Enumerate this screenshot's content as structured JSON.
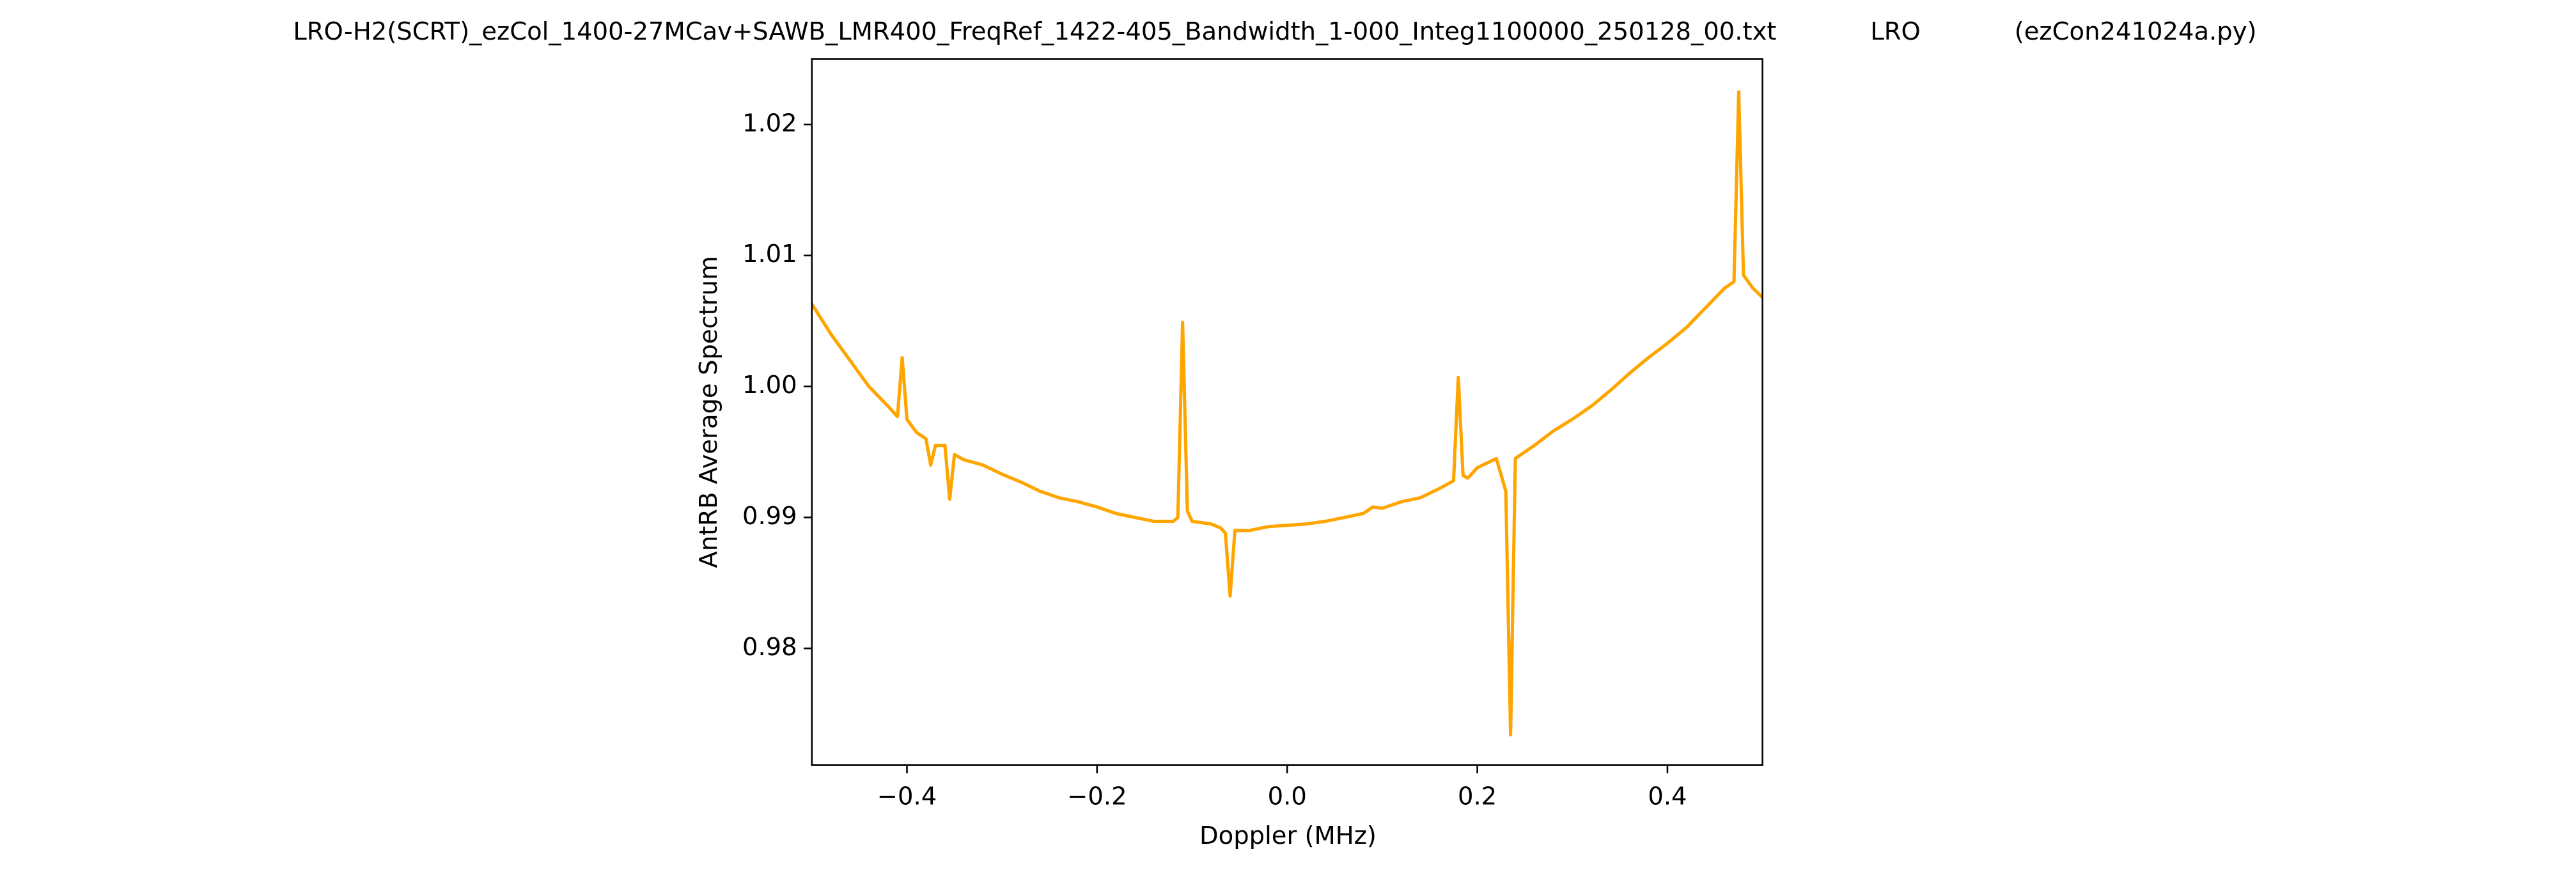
{
  "chart_data": {
    "type": "line",
    "title": "LRO-H2(SCRT)_ezCol_1400-27MCav+SAWB_LMR400_FreqRef_1422-405_Bandwidth_1-000_Integ1100000_250128_00.txt            LRO            (ezCon241024a.py)",
    "x_label": "Doppler (MHz)",
    "y_label": "AntRB Average Spectrum",
    "x": [
      -0.5,
      -0.48,
      -0.46,
      -0.44,
      -0.42,
      -0.41,
      -0.405,
      -0.4,
      -0.39,
      -0.38,
      -0.375,
      -0.37,
      -0.36,
      -0.355,
      -0.35,
      -0.34,
      -0.32,
      -0.3,
      -0.28,
      -0.26,
      -0.24,
      -0.22,
      -0.2,
      -0.18,
      -0.16,
      -0.14,
      -0.12,
      -0.115,
      -0.11,
      -0.105,
      -0.1,
      -0.08,
      -0.07,
      -0.065,
      -0.06,
      -0.055,
      -0.04,
      -0.02,
      0,
      0.02,
      0.04,
      0.06,
      0.08,
      0.09,
      0.1,
      0.12,
      0.14,
      0.16,
      0.175,
      0.18,
      0.185,
      0.19,
      0.2,
      0.22,
      0.23,
      0.235,
      0.24,
      0.26,
      0.28,
      0.3,
      0.32,
      0.34,
      0.36,
      0.38,
      0.4,
      0.42,
      0.44,
      0.46,
      0.47,
      0.475,
      0.48,
      0.49,
      0.5
    ],
    "series": [
      {
        "color": "#ffa500",
        "values": [
          1.0063,
          1.004,
          1.002,
          1.0,
          0.9985,
          0.9977,
          1.0022,
          0.9975,
          0.9965,
          0.996,
          0.994,
          0.9955,
          0.9955,
          0.9914,
          0.9948,
          0.9944,
          0.994,
          0.9933,
          0.9927,
          0.992,
          0.9915,
          0.9912,
          0.9908,
          0.9903,
          0.99,
          0.9897,
          0.9897,
          0.99,
          1.0049,
          0.9905,
          0.9897,
          0.9895,
          0.9892,
          0.9888,
          0.984,
          0.989,
          0.989,
          0.9893,
          0.9894,
          0.9895,
          0.9897,
          0.99,
          0.9903,
          0.9908,
          0.9907,
          0.9912,
          0.9915,
          0.9922,
          0.9928,
          1.0007,
          0.9932,
          0.993,
          0.9938,
          0.9945,
          0.992,
          0.9734,
          0.9945,
          0.9955,
          0.9966,
          0.9975,
          0.9985,
          0.9997,
          1.001,
          1.0022,
          1.0033,
          1.0045,
          1.006,
          1.0075,
          1.008,
          1.0225,
          1.0085,
          1.0075,
          1.0068
        ]
      }
    ],
    "xlim": [
      -0.5,
      0.5
    ],
    "ylim": [
      0.9711,
      1.025
    ],
    "xticks": [
      {
        "value": -0.4,
        "label": "−0.4"
      },
      {
        "value": -0.2,
        "label": "−0.2"
      },
      {
        "value": 0,
        "label": "0.0"
      },
      0.2,
      0.4
    ],
    "yticks": [
      0.98,
      0.99,
      {
        "value": 1.0,
        "label": "1.00"
      },
      1.01,
      1.02
    ]
  }
}
